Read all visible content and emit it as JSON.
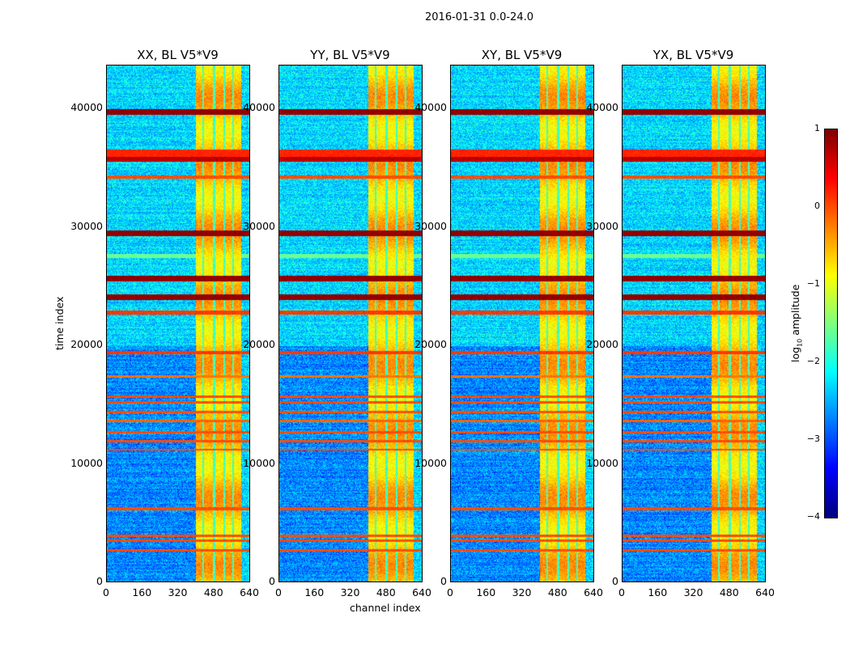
{
  "chart_data": {
    "type": "heatmap",
    "title": "2016-01-31 0.0-24.0",
    "xlabel": "channel index",
    "ylabel": "time index",
    "xlim": [
      0,
      640
    ],
    "ylim": [
      0,
      43700
    ],
    "xticks": [
      "0",
      "160",
      "320",
      "480",
      "640"
    ],
    "yticks": [
      "0",
      "10000",
      "20000",
      "30000",
      "40000"
    ],
    "panels": [
      {
        "title": "XX, BL V5*V9"
      },
      {
        "title": "YY, BL V5*V9"
      },
      {
        "title": "XY, BL V5*V9"
      },
      {
        "title": "YX, BL V5*V9"
      }
    ],
    "colorbar": {
      "label": "log10 amplitude",
      "label_main": "log",
      "label_sub": "10",
      "label_rest": " amplitude",
      "range": [
        -4,
        1
      ],
      "ticks": [
        "1",
        "0",
        "−1",
        "−2",
        "−3",
        "−4"
      ],
      "colormap": "jet"
    },
    "background_level": -2.3,
    "rfi_channel_band": {
      "from": 400,
      "to": 600,
      "level": -0.6,
      "gap_channels": [
        430,
        480,
        525,
        565
      ]
    },
    "time_bands": [
      {
        "t": 39800,
        "width": 250,
        "level": 0.9
      },
      {
        "t": 36300,
        "width": 300,
        "level": 0.2
      },
      {
        "t": 35800,
        "width": 200,
        "level": 0.7
      },
      {
        "t": 34300,
        "width": 150,
        "level": 0.0
      },
      {
        "t": 29500,
        "width": 250,
        "level": 0.9
      },
      {
        "t": 27600,
        "width": 200,
        "level": -1.6
      },
      {
        "t": 25700,
        "width": 250,
        "level": 0.9
      },
      {
        "t": 24100,
        "width": 250,
        "level": 0.9
      },
      {
        "t": 22800,
        "width": 150,
        "level": 0.1
      },
      {
        "t": 19400,
        "width": 150,
        "level": 0.1
      },
      {
        "t": 17400,
        "width": 100,
        "level": -0.2
      },
      {
        "t": 15700,
        "width": 120,
        "level": 0.0
      },
      {
        "t": 15200,
        "width": 120,
        "level": 0.0
      },
      {
        "t": 14400,
        "width": 100,
        "level": 0.0
      },
      {
        "t": 13600,
        "width": 100,
        "level": -0.1
      },
      {
        "t": 12700,
        "width": 100,
        "level": 0.0
      },
      {
        "t": 11900,
        "width": 100,
        "level": 0.0
      },
      {
        "t": 11200,
        "width": 100,
        "level": 0.0
      },
      {
        "t": 6200,
        "width": 120,
        "level": 0.0
      },
      {
        "t": 3900,
        "width": 100,
        "level": 0.0
      },
      {
        "t": 3500,
        "width": 100,
        "level": 0.0
      },
      {
        "t": 2650,
        "width": 100,
        "level": 0.0
      }
    ]
  }
}
